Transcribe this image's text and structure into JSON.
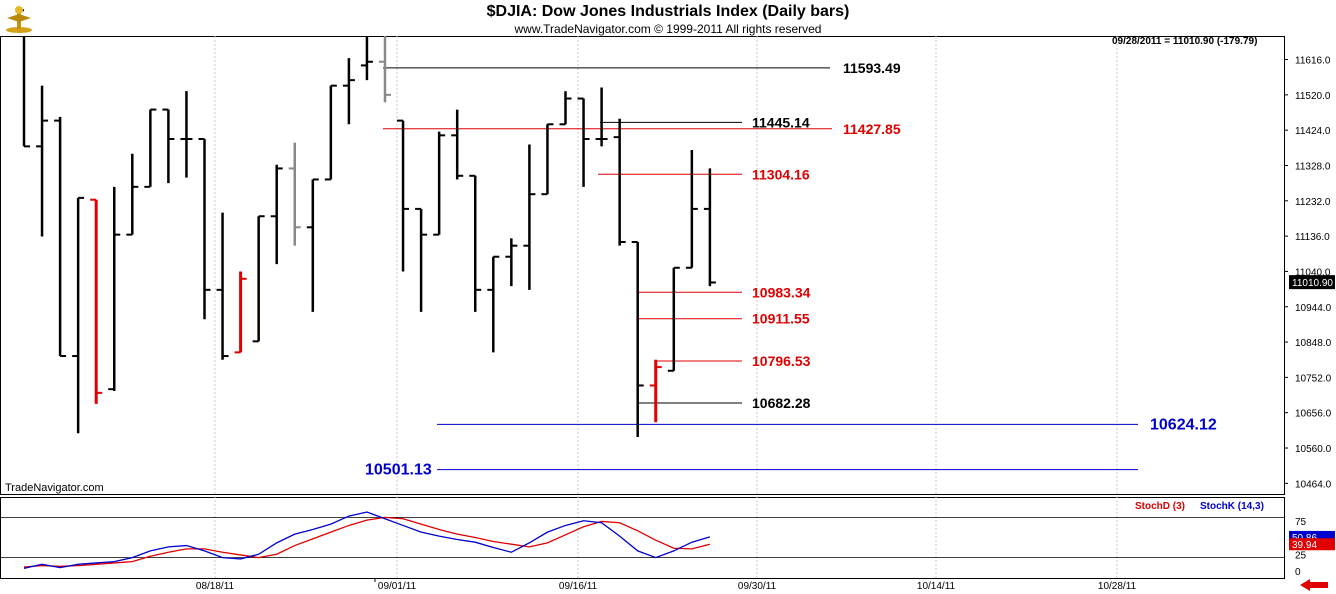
{
  "header": {
    "title": "$DJIA:  Dow Jones Industrials Index  (Daily bars)",
    "copyright": "www.TradeNavigator.com © 1999-2011 All rights reserved",
    "readout": "09/28/2011 = 11010.90 (-179.79)",
    "watermark": "TradeNavigator.com",
    "logo_icon": "trade-navigator-logo-icon",
    "nav_icon": "back-arrow-icon"
  },
  "colors": {
    "up_bar": "#000000",
    "down_bar": "#e00000",
    "neutral_bar": "#888888",
    "close_tick": "#00cc00",
    "level_black": "#000000",
    "level_red": "#e00000",
    "level_blue": "#0000cc",
    "stochd": "#e00000",
    "stochk": "#0000cc",
    "grid": "#c8c8c8"
  },
  "chart_data": [
    {
      "type": "ohlc",
      "title": "$DJIA:  Dow Jones Industrials Index  (Daily bars)",
      "y_ticks": [
        "11616.0",
        "11520.0",
        "11424.0",
        "11328.0",
        "11232.0",
        "11136.0",
        "11040.0",
        "10944.0",
        "10848.0",
        "10752.0",
        "10656.0",
        "10560.0",
        "10464.0"
      ],
      "ylim": [
        10435,
        11680
      ],
      "last_value": "11010.90",
      "x_ticks": [
        "08/18/11",
        "09/01/11",
        "09/16/11",
        "09/30/11",
        "10/14/11",
        "10/28/11"
      ],
      "grid": true,
      "bars": [
        {
          "o": 11750,
          "h": 11760,
          "l": 11380,
          "c": 11380,
          "dir": "up"
        },
        {
          "o": 11380,
          "h": 11545,
          "l": 11135,
          "c": 11450,
          "dir": "up"
        },
        {
          "o": 11450,
          "h": 11460,
          "l": 10810,
          "c": 10810,
          "dir": "up"
        },
        {
          "o": 10810,
          "h": 11240,
          "l": 10600,
          "c": 11240,
          "dir": "up"
        },
        {
          "o": 11235,
          "h": 11235,
          "l": 10680,
          "c": 10710,
          "dir": "down"
        },
        {
          "o": 10720,
          "h": 11270,
          "l": 10715,
          "c": 11140,
          "dir": "up"
        },
        {
          "o": 11140,
          "h": 11360,
          "l": 11140,
          "c": 11270,
          "dir": "up"
        },
        {
          "o": 11270,
          "h": 11480,
          "l": 11270,
          "c": 11480,
          "dir": "up"
        },
        {
          "o": 11480,
          "h": 11480,
          "l": 11280,
          "c": 11400,
          "dir": "up"
        },
        {
          "o": 11400,
          "h": 11530,
          "l": 11295,
          "c": 11400,
          "dir": "up"
        },
        {
          "o": 11400,
          "h": 11400,
          "l": 10910,
          "c": 10990,
          "dir": "up"
        },
        {
          "o": 10990,
          "h": 11200,
          "l": 10800,
          "c": 10810,
          "dir": "up"
        },
        {
          "o": 10820,
          "h": 11040,
          "l": 10820,
          "c": 11020,
          "dir": "down"
        },
        {
          "o": 10850,
          "h": 11190,
          "l": 10850,
          "c": 11190,
          "dir": "up"
        },
        {
          "o": 11190,
          "h": 11330,
          "l": 11060,
          "c": 11320,
          "dir": "up"
        },
        {
          "o": 11320,
          "h": 11390,
          "l": 11110,
          "c": 11160,
          "dir": "neutral"
        },
        {
          "o": 11160,
          "h": 11290,
          "l": 10930,
          "c": 11290,
          "dir": "up"
        },
        {
          "o": 11290,
          "h": 11545,
          "l": 11290,
          "c": 11545,
          "dir": "up"
        },
        {
          "o": 11545,
          "h": 11620,
          "l": 11440,
          "c": 11560,
          "dir": "up"
        },
        {
          "o": 11600,
          "h": 11690,
          "l": 11560,
          "c": 11610,
          "dir": "up"
        },
        {
          "o": 11610,
          "h": 11700,
          "l": 11500,
          "c": 11520,
          "dir": "neutral"
        },
        {
          "o": 11450,
          "h": 11450,
          "l": 11040,
          "c": 11210,
          "dir": "up"
        },
        {
          "o": 11210,
          "h": 11210,
          "l": 10930,
          "c": 11140,
          "dir": "up"
        },
        {
          "o": 11140,
          "h": 11420,
          "l": 11140,
          "c": 11410,
          "dir": "up"
        },
        {
          "o": 11410,
          "h": 11480,
          "l": 11290,
          "c": 11300,
          "dir": "up"
        },
        {
          "o": 11300,
          "h": 11300,
          "l": 10930,
          "c": 10990,
          "dir": "up"
        },
        {
          "o": 10990,
          "h": 11080,
          "l": 10820,
          "c": 11080,
          "dir": "up"
        },
        {
          "o": 11080,
          "h": 11130,
          "l": 11000,
          "c": 11110,
          "dir": "up"
        },
        {
          "o": 11110,
          "h": 11385,
          "l": 10990,
          "c": 11250,
          "dir": "up"
        },
        {
          "o": 11250,
          "h": 11440,
          "l": 11250,
          "c": 11440,
          "dir": "up"
        },
        {
          "o": 11440,
          "h": 11530,
          "l": 11440,
          "c": 11510,
          "dir": "up"
        },
        {
          "o": 11510,
          "h": 11510,
          "l": 11270,
          "c": 11400,
          "dir": "up"
        },
        {
          "o": 11400,
          "h": 11540,
          "l": 11380,
          "c": 11400,
          "dir": "up"
        },
        {
          "o": 11405,
          "h": 11455,
          "l": 11110,
          "c": 11120,
          "dir": "up"
        },
        {
          "o": 11120,
          "h": 11120,
          "l": 10590,
          "c": 10730,
          "dir": "up"
        },
        {
          "o": 10730,
          "h": 10800,
          "l": 10630,
          "c": 10780,
          "dir": "down"
        },
        {
          "o": 10770,
          "h": 11050,
          "l": 10770,
          "c": 11050,
          "dir": "up"
        },
        {
          "o": 11050,
          "h": 11370,
          "l": 11050,
          "c": 11210,
          "dir": "up"
        },
        {
          "o": 11210,
          "h": 11320,
          "l": 11000,
          "c": 11010,
          "dir": "up"
        }
      ],
      "levels": [
        {
          "value": 11593.49,
          "label": "11593.49",
          "color": "black"
        },
        {
          "value": 11445.14,
          "label": "11445.14",
          "color": "black"
        },
        {
          "value": 11427.85,
          "label": "11427.85",
          "color": "red"
        },
        {
          "value": 11304.16,
          "label": "11304.16",
          "color": "red"
        },
        {
          "value": 10983.34,
          "label": "10983.34",
          "color": "red"
        },
        {
          "value": 10911.55,
          "label": "10911.55",
          "color": "red"
        },
        {
          "value": 10796.53,
          "label": "10796.53",
          "color": "red"
        },
        {
          "value": 10682.28,
          "label": "10682.28",
          "color": "black"
        },
        {
          "value": 10624.12,
          "label": "10624.12",
          "color": "blue"
        },
        {
          "value": 10501.13,
          "label": "10501.13",
          "color": "blue"
        }
      ]
    },
    {
      "type": "line",
      "legend": [
        "StochD (3)",
        "StochK (14,3)"
      ],
      "y_ticks": [
        "75",
        "25",
        "0"
      ],
      "ylim": [
        0,
        100
      ],
      "reference_lines": [
        80,
        20
      ],
      "last_values": {
        "stochk": "50.86",
        "stochd": "39.94"
      },
      "series": [
        {
          "name": "StochD (3)",
          "color": "red",
          "values": [
            6,
            8,
            7,
            8,
            10,
            12,
            14,
            22,
            28,
            33,
            33,
            28,
            24,
            20,
            25,
            38,
            48,
            58,
            68,
            76,
            80,
            78,
            70,
            62,
            55,
            50,
            44,
            40,
            36,
            42,
            54,
            66,
            74,
            72,
            60,
            46,
            34,
            33,
            40
          ]
        },
        {
          "name": "StochK (14,3)",
          "color": "blue",
          "values": [
            4,
            10,
            5,
            10,
            12,
            14,
            20,
            30,
            36,
            38,
            30,
            20,
            18,
            25,
            42,
            55,
            62,
            70,
            82,
            88,
            78,
            68,
            58,
            52,
            47,
            43,
            35,
            28,
            42,
            58,
            68,
            75,
            72,
            52,
            30,
            20,
            30,
            43,
            51
          ]
        }
      ]
    }
  ]
}
